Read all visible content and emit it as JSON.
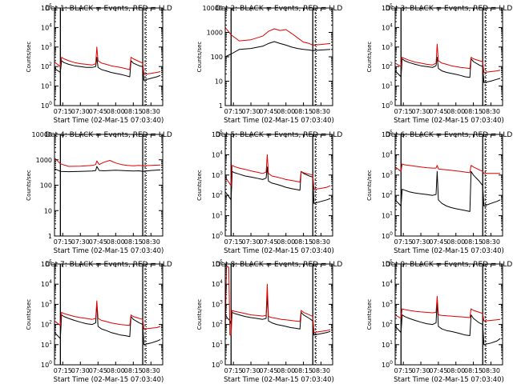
{
  "colors": {
    "events": "#000000",
    "lld": "#e00000",
    "axis": "#000000",
    "background": "#ffffff"
  },
  "time_ticks": [
    "07:15",
    "07:30",
    "07:45",
    "08:00",
    "08:15",
    "08:30"
  ],
  "xlabel": "Start Time (02-Mar-15 07:03:40)",
  "ylabel": "Counts/sec",
  "chart_data": [
    {
      "type": "line",
      "title": "Det 1: BLACK = Events, RED = LLD",
      "yscale": "log",
      "ylim": [
        1,
        100000
      ],
      "ytick_labels": [
        "10^0",
        "10^1",
        "10^2",
        "10^3",
        "10^4",
        "10^5"
      ],
      "xlim": [
        "07:08",
        "08:40"
      ],
      "vlines": [
        "07:13",
        "08:23"
      ],
      "dotted_vlines": [
        "08:26"
      ],
      "x": [
        "07:08",
        "07:13",
        "07:14",
        "07:16",
        "07:20",
        "07:25",
        "07:30",
        "07:35",
        "07:40",
        "07:43",
        "07:44",
        "07:45",
        "07:48",
        "07:52",
        "07:56",
        "08:00",
        "08:04",
        "08:08",
        "08:12",
        "08:13",
        "08:15",
        "08:20",
        "08:23",
        "08:24",
        "08:30",
        "08:35",
        "08:38"
      ],
      "series": [
        {
          "name": "Events",
          "values": [
            80,
            50,
            200,
            160,
            130,
            110,
            100,
            90,
            90,
            100,
            300,
            90,
            70,
            60,
            50,
            45,
            40,
            35,
            30,
            200,
            150,
            110,
            100,
            20,
            25,
            30,
            35
          ]
        },
        {
          "name": "LLD",
          "values": [
            170,
            100,
            300,
            250,
            200,
            160,
            140,
            130,
            120,
            140,
            1000,
            200,
            150,
            130,
            110,
            100,
            90,
            80,
            70,
            300,
            250,
            180,
            150,
            40,
            45,
            50,
            55
          ]
        }
      ]
    },
    {
      "type": "line",
      "title": "Det 2: BLACK = Events, RED = LLD",
      "yscale": "log",
      "ylim": [
        1,
        10000
      ],
      "ytick_labels": [
        "1",
        "10",
        "100",
        "1000",
        "10000"
      ],
      "xlim": [
        "07:08",
        "08:40"
      ],
      "vlines": [
        "07:13",
        "08:23"
      ],
      "dotted_vlines": [
        "08:26"
      ],
      "x": [
        "07:08",
        "07:13",
        "07:20",
        "07:30",
        "07:40",
        "07:45",
        "07:50",
        "07:55",
        "08:00",
        "08:05",
        "08:10",
        "08:15",
        "08:20",
        "08:23",
        "08:30",
        "08:38"
      ],
      "series": [
        {
          "name": "Events",
          "values": [
            100,
            130,
            200,
            220,
            270,
            350,
            420,
            350,
            300,
            250,
            220,
            200,
            190,
            180,
            190,
            200
          ]
        },
        {
          "name": "LLD",
          "values": [
            1600,
            800,
            450,
            500,
            700,
            1100,
            1400,
            1200,
            1300,
            900,
            600,
            400,
            350,
            300,
            320,
            350
          ]
        }
      ]
    },
    {
      "type": "line",
      "title": "Det 3: BLACK = Events, RED = LLD",
      "yscale": "log",
      "ylim": [
        1,
        100000
      ],
      "ytick_labels": [
        "10^0",
        "10^1",
        "10^2",
        "10^3",
        "10^4",
        "10^5"
      ],
      "xlim": [
        "07:08",
        "08:40"
      ],
      "vlines": [
        "07:13",
        "08:23"
      ],
      "dotted_vlines": [
        "08:26"
      ],
      "x": [
        "07:08",
        "07:13",
        "07:14",
        "07:16",
        "07:20",
        "07:25",
        "07:30",
        "07:35",
        "07:40",
        "07:43",
        "07:44",
        "07:45",
        "07:48",
        "07:52",
        "07:56",
        "08:00",
        "08:04",
        "08:08",
        "08:12",
        "08:13",
        "08:15",
        "08:20",
        "08:23",
        "08:24",
        "08:30",
        "08:35",
        "08:38"
      ],
      "series": [
        {
          "name": "Events",
          "values": [
            60,
            30,
            250,
            200,
            160,
            130,
            110,
            100,
            90,
            110,
            300,
            80,
            60,
            50,
            45,
            40,
            35,
            30,
            28,
            250,
            180,
            120,
            100,
            15,
            18,
            22,
            25
          ]
        },
        {
          "name": "LLD",
          "values": [
            150,
            100,
            300,
            260,
            210,
            170,
            150,
            130,
            120,
            150,
            1400,
            200,
            150,
            130,
            110,
            100,
            90,
            85,
            80,
            300,
            250,
            200,
            180,
            50,
            55,
            60,
            65
          ]
        }
      ]
    },
    {
      "type": "line",
      "title": "Det 4: BLACK = Events, RED = LLD",
      "yscale": "log",
      "ylim": [
        1,
        10000
      ],
      "ytick_labels": [
        "1",
        "10",
        "100",
        "1000",
        "10000"
      ],
      "xlim": [
        "07:08",
        "08:40"
      ],
      "vlines": [
        "07:13",
        "08:23"
      ],
      "dotted_vlines": [
        "08:26"
      ],
      "x": [
        "07:08",
        "07:13",
        "07:20",
        "07:30",
        "07:40",
        "07:43",
        "07:44",
        "07:46",
        "07:50",
        "07:55",
        "08:00",
        "08:05",
        "08:10",
        "08:15",
        "08:20",
        "08:23",
        "08:30",
        "08:38"
      ],
      "series": [
        {
          "name": "Events",
          "values": [
            450,
            350,
            340,
            350,
            360,
            380,
            550,
            380,
            370,
            380,
            390,
            380,
            370,
            360,
            370,
            350,
            380,
            400
          ]
        },
        {
          "name": "LLD",
          "values": [
            1200,
            700,
            550,
            560,
            600,
            650,
            900,
            650,
            800,
            950,
            750,
            650,
            600,
            580,
            600,
            580,
            600,
            620
          ]
        }
      ]
    },
    {
      "type": "line",
      "title": "Det 5: BLACK = Events, RED = LLD",
      "yscale": "log",
      "ylim": [
        1,
        100000
      ],
      "ytick_labels": [
        "10^0",
        "10^1",
        "10^2",
        "10^3",
        "10^4",
        "10^5"
      ],
      "xlim": [
        "07:08",
        "08:40"
      ],
      "vlines": [
        "07:13",
        "08:23"
      ],
      "dotted_vlines": [
        "08:26"
      ],
      "x": [
        "07:08",
        "07:13",
        "07:14",
        "07:16",
        "07:20",
        "07:25",
        "07:30",
        "07:35",
        "07:40",
        "07:43",
        "07:44",
        "07:45",
        "07:48",
        "07:52",
        "07:56",
        "08:00",
        "08:04",
        "08:08",
        "08:12",
        "08:13",
        "08:15",
        "08:20",
        "08:23",
        "08:24",
        "08:30",
        "08:35",
        "08:38"
      ],
      "series": [
        {
          "name": "Events",
          "values": [
            150,
            60,
            1500,
            1300,
            1100,
            900,
            800,
            700,
            600,
            700,
            2500,
            500,
            400,
            350,
            300,
            250,
            220,
            200,
            180,
            1500,
            1200,
            900,
            800,
            40,
            50,
            60,
            70
          ]
        },
        {
          "name": "LLD",
          "values": [
            800,
            300,
            3000,
            2600,
            2200,
            1900,
            1600,
            1400,
            1200,
            1400,
            10000,
            1200,
            900,
            800,
            700,
            600,
            550,
            500,
            450,
            1500,
            1300,
            1100,
            1000,
            200,
            220,
            250,
            300
          ]
        }
      ]
    },
    {
      "type": "line",
      "title": "Det 6: BLACK = Events, RED = LLD",
      "yscale": "log",
      "ylim": [
        1,
        100000
      ],
      "ytick_labels": [
        "10^0",
        "10^1",
        "10^2",
        "10^3",
        "10^4",
        "10^5"
      ],
      "xlim": [
        "07:08",
        "08:40"
      ],
      "vlines": [
        "07:13",
        "08:23"
      ],
      "dotted_vlines": [
        "08:26"
      ],
      "x": [
        "07:08",
        "07:13",
        "07:14",
        "07:16",
        "07:20",
        "07:25",
        "07:30",
        "07:35",
        "07:40",
        "07:43",
        "07:44",
        "07:45",
        "07:48",
        "07:52",
        "07:56",
        "08:00",
        "08:04",
        "08:08",
        "08:12",
        "08:13",
        "08:15",
        "08:20",
        "08:23",
        "08:24",
        "08:30",
        "08:35",
        "08:38"
      ],
      "series": [
        {
          "name": "Events",
          "values": [
            60,
            30,
            200,
            180,
            150,
            130,
            120,
            110,
            100,
            110,
            1500,
            60,
            40,
            30,
            25,
            22,
            20,
            18,
            16,
            1500,
            1000,
            500,
            300,
            30,
            40,
            50,
            60
          ]
        },
        {
          "name": "LLD",
          "values": [
            2500,
            1500,
            3500,
            3200,
            3000,
            2700,
            2500,
            2300,
            2200,
            2200,
            3000,
            2000,
            1900,
            1800,
            1700,
            1600,
            1500,
            1400,
            1300,
            3000,
            2500,
            1800,
            1500,
            1200,
            1200,
            1200,
            1200
          ]
        }
      ]
    },
    {
      "type": "line",
      "title": "Det 7: BLACK = Events, RED = LLD",
      "yscale": "log",
      "ylim": [
        1,
        100000
      ],
      "ytick_labels": [
        "10^0",
        "10^1",
        "10^2",
        "10^3",
        "10^4",
        "10^5"
      ],
      "xlim": [
        "07:08",
        "08:40"
      ],
      "vlines": [
        "07:13",
        "08:23"
      ],
      "dotted_vlines": [
        "08:26"
      ],
      "x": [
        "07:08",
        "07:13",
        "07:14",
        "07:16",
        "07:20",
        "07:25",
        "07:30",
        "07:35",
        "07:40",
        "07:43",
        "07:44",
        "07:45",
        "07:48",
        "07:52",
        "07:56",
        "08:00",
        "08:04",
        "08:08",
        "08:12",
        "08:13",
        "08:15",
        "08:20",
        "08:23",
        "08:24",
        "08:30",
        "08:35",
        "08:38"
      ],
      "series": [
        {
          "name": "Events",
          "values": [
            40,
            20,
            300,
            250,
            200,
            160,
            130,
            110,
            100,
            120,
            1200,
            80,
            60,
            50,
            40,
            35,
            30,
            28,
            25,
            250,
            180,
            120,
            100,
            10,
            12,
            15,
            18
          ]
        },
        {
          "name": "LLD",
          "values": [
            150,
            90,
            400,
            350,
            300,
            250,
            220,
            200,
            180,
            200,
            1500,
            200,
            160,
            140,
            120,
            110,
            100,
            95,
            90,
            300,
            250,
            200,
            180,
            60,
            65,
            70,
            80
          ]
        }
      ]
    },
    {
      "type": "line",
      "title": "Det 8: BLACK = Events, RED = LLD",
      "yscale": "log",
      "ylim": [
        1,
        100000
      ],
      "ytick_labels": [
        "10^0",
        "10^1",
        "10^2",
        "10^3",
        "10^4",
        "10^5"
      ],
      "xlim": [
        "07:08",
        "08:40"
      ],
      "vlines": [
        "07:13",
        "08:23"
      ],
      "dotted_vlines": [
        "08:26"
      ],
      "x": [
        "07:08",
        "07:09",
        "07:10",
        "07:11",
        "07:12",
        "07:13",
        "07:14",
        "07:16",
        "07:20",
        "07:25",
        "07:30",
        "07:35",
        "07:40",
        "07:43",
        "07:44",
        "07:45",
        "07:48",
        "07:52",
        "07:56",
        "08:00",
        "08:04",
        "08:08",
        "08:12",
        "08:13",
        "08:15",
        "08:20",
        "08:23",
        "08:24",
        "08:30",
        "08:35",
        "08:38"
      ],
      "series": [
        {
          "name": "Events",
          "values": [
            300,
            250,
            200,
            180,
            150,
            100,
            400,
            350,
            300,
            250,
            220,
            200,
            180,
            200,
            3000,
            150,
            120,
            100,
            90,
            80,
            70,
            65,
            60,
            400,
            300,
            200,
            150,
            30,
            35,
            40,
            45
          ]
        },
        {
          "name": "LLD",
          "values": [
            30,
            70000,
            70000,
            70000,
            30,
            30,
            500,
            450,
            400,
            350,
            300,
            280,
            260,
            280,
            10000,
            250,
            220,
            200,
            180,
            170,
            160,
            150,
            140,
            500,
            400,
            300,
            250,
            40,
            45,
            50,
            55
          ]
        }
      ]
    },
    {
      "type": "line",
      "title": "Det 9: BLACK = Events, RED = LLD",
      "yscale": "log",
      "ylim": [
        1,
        100000
      ],
      "ytick_labels": [
        "10^0",
        "10^1",
        "10^2",
        "10^3",
        "10^4",
        "10^5"
      ],
      "xlim": [
        "07:08",
        "08:40"
      ],
      "vlines": [
        "07:13",
        "08:23"
      ],
      "dotted_vlines": [
        "08:26"
      ],
      "x": [
        "07:08",
        "07:13",
        "07:14",
        "07:16",
        "07:20",
        "07:25",
        "07:30",
        "07:35",
        "07:40",
        "07:43",
        "07:44",
        "07:45",
        "07:48",
        "07:52",
        "07:56",
        "08:00",
        "08:04",
        "08:08",
        "08:12",
        "08:13",
        "08:15",
        "08:20",
        "08:23",
        "08:24",
        "08:30",
        "08:35",
        "08:38"
      ],
      "series": [
        {
          "name": "Events",
          "values": [
            80,
            40,
            300,
            250,
            200,
            160,
            130,
            110,
            100,
            120,
            1500,
            80,
            60,
            50,
            45,
            40,
            35,
            30,
            28,
            300,
            200,
            120,
            100,
            10,
            12,
            15,
            20
          ]
        },
        {
          "name": "LLD",
          "values": [
            300,
            200,
            600,
            550,
            500,
            450,
            420,
            400,
            380,
            400,
            2500,
            300,
            280,
            270,
            260,
            250,
            240,
            230,
            220,
            600,
            500,
            400,
            350,
            150,
            160,
            170,
            180
          ]
        }
      ]
    }
  ]
}
